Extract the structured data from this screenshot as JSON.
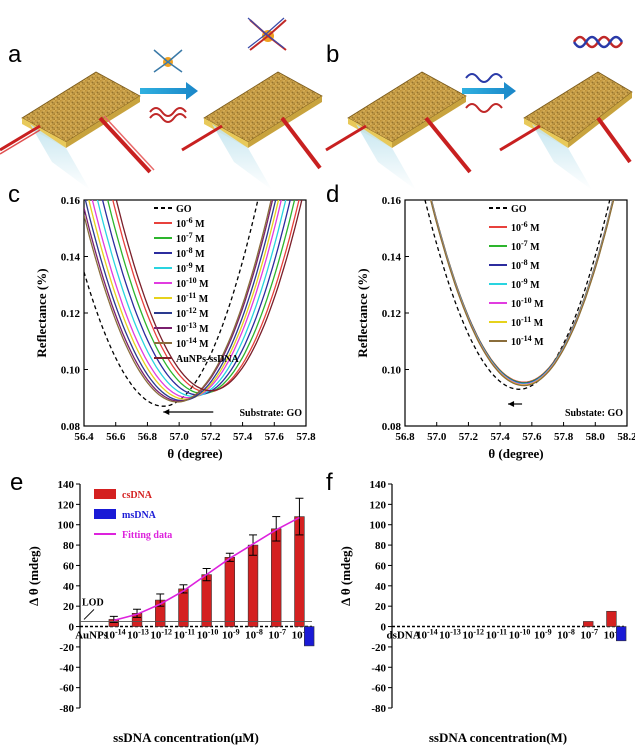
{
  "panels_top": {
    "a": {
      "label": "a"
    },
    "b": {
      "label": "b"
    }
  },
  "chart_data": [
    {
      "id": "c",
      "panel_label": "c",
      "type": "line",
      "xlabel": "θ (degree)",
      "ylabel": "Reflectance (%)",
      "xlim": [
        56.4,
        57.8
      ],
      "ylim": [
        0.08,
        0.16
      ],
      "xticks": [
        "56.4",
        "56.6",
        "56.8",
        "57.0",
        "57.2",
        "57.4",
        "57.6",
        "57.8"
      ],
      "yticks": [
        "0.08",
        "0.10",
        "0.12",
        "0.14",
        "0.16"
      ],
      "annotation": "Substrate: GO",
      "series": [
        {
          "name": "GO",
          "color": "#000000",
          "dashed": true,
          "min_x": 56.9,
          "min_y": 0.087
        },
        {
          "name": "10-6 M",
          "base": "10",
          "exp": "-6",
          "unit": " M",
          "color": "#e8413c",
          "min_x": 57.18,
          "min_y": 0.092
        },
        {
          "name": "10-7 M",
          "base": "10",
          "exp": "-7",
          "unit": " M",
          "color": "#2db52d",
          "min_x": 57.15,
          "min_y": 0.0915
        },
        {
          "name": "10-8 M",
          "base": "10",
          "exp": "-8",
          "unit": " M",
          "color": "#2c2c9e",
          "min_x": 57.12,
          "min_y": 0.091
        },
        {
          "name": "10-9 M",
          "base": "10",
          "exp": "-9",
          "unit": " M",
          "color": "#29d4e0",
          "min_x": 57.09,
          "min_y": 0.0905
        },
        {
          "name": "10-10 M",
          "base": "10",
          "exp": "-10",
          "unit": " M",
          "color": "#e13ce0",
          "min_x": 57.06,
          "min_y": 0.09
        },
        {
          "name": "10-11 M",
          "base": "10",
          "exp": "-11",
          "unit": " M",
          "color": "#e6d21c",
          "min_x": 57.04,
          "min_y": 0.0895
        },
        {
          "name": "10-12 M",
          "base": "10",
          "exp": "-12",
          "unit": " M",
          "color": "#2a3a8f",
          "min_x": 57.02,
          "min_y": 0.089
        },
        {
          "name": "10-13 M",
          "base": "10",
          "exp": "-13",
          "unit": " M",
          "color": "#7a1f6e",
          "min_x": 57.0,
          "min_y": 0.0888
        },
        {
          "name": "10-14 M",
          "base": "10",
          "exp": "-14",
          "unit": " M",
          "color": "#8a6d3b",
          "min_x": 56.99,
          "min_y": 0.0885
        },
        {
          "name": "AuNPs-ssDNA",
          "base": "AuNPs-ssDNA",
          "exp": "",
          "unit": "",
          "color": "#7a1f2a",
          "min_x": 57.2,
          "min_y": 0.0925
        }
      ]
    },
    {
      "id": "d",
      "panel_label": "d",
      "type": "line",
      "xlabel": "θ (degree)",
      "ylabel": "Reflectance (%)",
      "xlim": [
        56.8,
        58.2
      ],
      "ylim": [
        0.08,
        0.16
      ],
      "xticks": [
        "56.8",
        "57.0",
        "57.2",
        "57.4",
        "57.6",
        "57.8",
        "58.0",
        "58.2"
      ],
      "yticks": [
        "0.08",
        "0.10",
        "0.12",
        "0.14",
        "0.16"
      ],
      "annotation": "Substate: GO",
      "series": [
        {
          "name": "GO",
          "color": "#000000",
          "dashed": true,
          "min_x": 57.52,
          "min_y": 0.093
        },
        {
          "name": "10-6 M",
          "base": "10",
          "exp": "-6",
          "unit": " M",
          "color": "#e8413c",
          "min_x": 57.55,
          "min_y": 0.0955
        },
        {
          "name": "10-7 M",
          "base": "10",
          "exp": "-7",
          "unit": " M",
          "color": "#2db52d",
          "min_x": 57.55,
          "min_y": 0.0953
        },
        {
          "name": "10-8 M",
          "base": "10",
          "exp": "-8",
          "unit": " M",
          "color": "#2c2c9e",
          "min_x": 57.55,
          "min_y": 0.0951
        },
        {
          "name": "10-9 M",
          "base": "10",
          "exp": "-9",
          "unit": " M",
          "color": "#29d4e0",
          "min_x": 57.55,
          "min_y": 0.0949
        },
        {
          "name": "10-10 M",
          "base": "10",
          "exp": "-10",
          "unit": " M",
          "color": "#e13ce0",
          "min_x": 57.55,
          "min_y": 0.0947
        },
        {
          "name": "10-11 M",
          "base": "10",
          "exp": "-11",
          "unit": " M",
          "color": "#e6d21c",
          "min_x": 57.55,
          "min_y": 0.0945
        },
        {
          "name": "10-14 M",
          "base": "10",
          "exp": "-14",
          "unit": " M",
          "color": "#8a6d3b",
          "min_x": 57.55,
          "min_y": 0.0943
        }
      ]
    },
    {
      "id": "e",
      "panel_label": "e",
      "type": "bar",
      "xlabel": "ssDNA concentration(μM)",
      "ylabel": "Δ θ (mdeg)",
      "ylim": [
        -80,
        140
      ],
      "yticks": [
        "-80",
        "-60",
        "-40",
        "-20",
        "0",
        "20",
        "40",
        "60",
        "80",
        "100",
        "120",
        "140"
      ],
      "categories": [
        {
          "base": "AuNPs",
          "exp": ""
        },
        {
          "base": "10",
          "exp": "-14"
        },
        {
          "base": "10",
          "exp": "-13"
        },
        {
          "base": "10",
          "exp": "-12"
        },
        {
          "base": "10",
          "exp": "-11"
        },
        {
          "base": "10",
          "exp": "-10"
        },
        {
          "base": "10",
          "exp": "-9"
        },
        {
          "base": "10",
          "exp": "-8"
        },
        {
          "base": "10",
          "exp": "-7"
        },
        {
          "base": "10",
          "exp": "-6"
        }
      ],
      "series": [
        {
          "name": "csDNA",
          "color": "#d42020",
          "values": [
            0,
            7,
            13,
            26,
            37,
            51,
            68,
            80,
            96,
            108
          ],
          "errors": [
            5,
            3,
            4,
            6,
            4,
            6,
            4,
            10,
            12,
            18
          ]
        },
        {
          "name": "msDNA",
          "color": "#1a1ad6",
          "values": [
            null,
            null,
            null,
            null,
            null,
            null,
            null,
            null,
            null,
            -19
          ],
          "errors": [
            null,
            null,
            null,
            null,
            null,
            null,
            null,
            null,
            null,
            0
          ]
        }
      ],
      "fit": {
        "name": "Fitting data",
        "color": "#dd22dd",
        "values": [
          null,
          6,
          12,
          22,
          35,
          51,
          67,
          81,
          95,
          107
        ]
      },
      "lod_label": "LOD",
      "lod_value": 5
    },
    {
      "id": "f",
      "panel_label": "f",
      "type": "bar",
      "xlabel": "ssDNA concentration(M)",
      "ylabel": "Δ θ (mdeg)",
      "ylim": [
        -80,
        140
      ],
      "yticks": [
        "-80",
        "-60",
        "-40",
        "-20",
        "0",
        "20",
        "40",
        "60",
        "80",
        "100",
        "120",
        "140"
      ],
      "categories": [
        {
          "base": "dsDNA",
          "exp": ""
        },
        {
          "base": "10",
          "exp": "-14"
        },
        {
          "base": "10",
          "exp": "-13"
        },
        {
          "base": "10",
          "exp": "-12"
        },
        {
          "base": "10",
          "exp": "-11"
        },
        {
          "base": "10",
          "exp": "-10"
        },
        {
          "base": "10",
          "exp": "-9"
        },
        {
          "base": "10",
          "exp": "-8"
        },
        {
          "base": "10",
          "exp": "-7"
        },
        {
          "base": "10",
          "exp": "-6"
        }
      ],
      "series": [
        {
          "name": "csDNA",
          "color": "#d42020",
          "values": [
            0,
            0,
            0,
            0,
            0,
            0,
            0,
            0,
            5,
            15
          ],
          "errors": [
            0,
            0,
            0,
            0,
            0,
            0,
            0,
            0,
            0,
            0
          ]
        },
        {
          "name": "msDNA",
          "color": "#1a1ad6",
          "values": [
            null,
            null,
            null,
            null,
            null,
            null,
            null,
            null,
            null,
            -14
          ],
          "errors": [
            null,
            null,
            null,
            null,
            null,
            null,
            null,
            null,
            null,
            0
          ]
        }
      ]
    }
  ]
}
